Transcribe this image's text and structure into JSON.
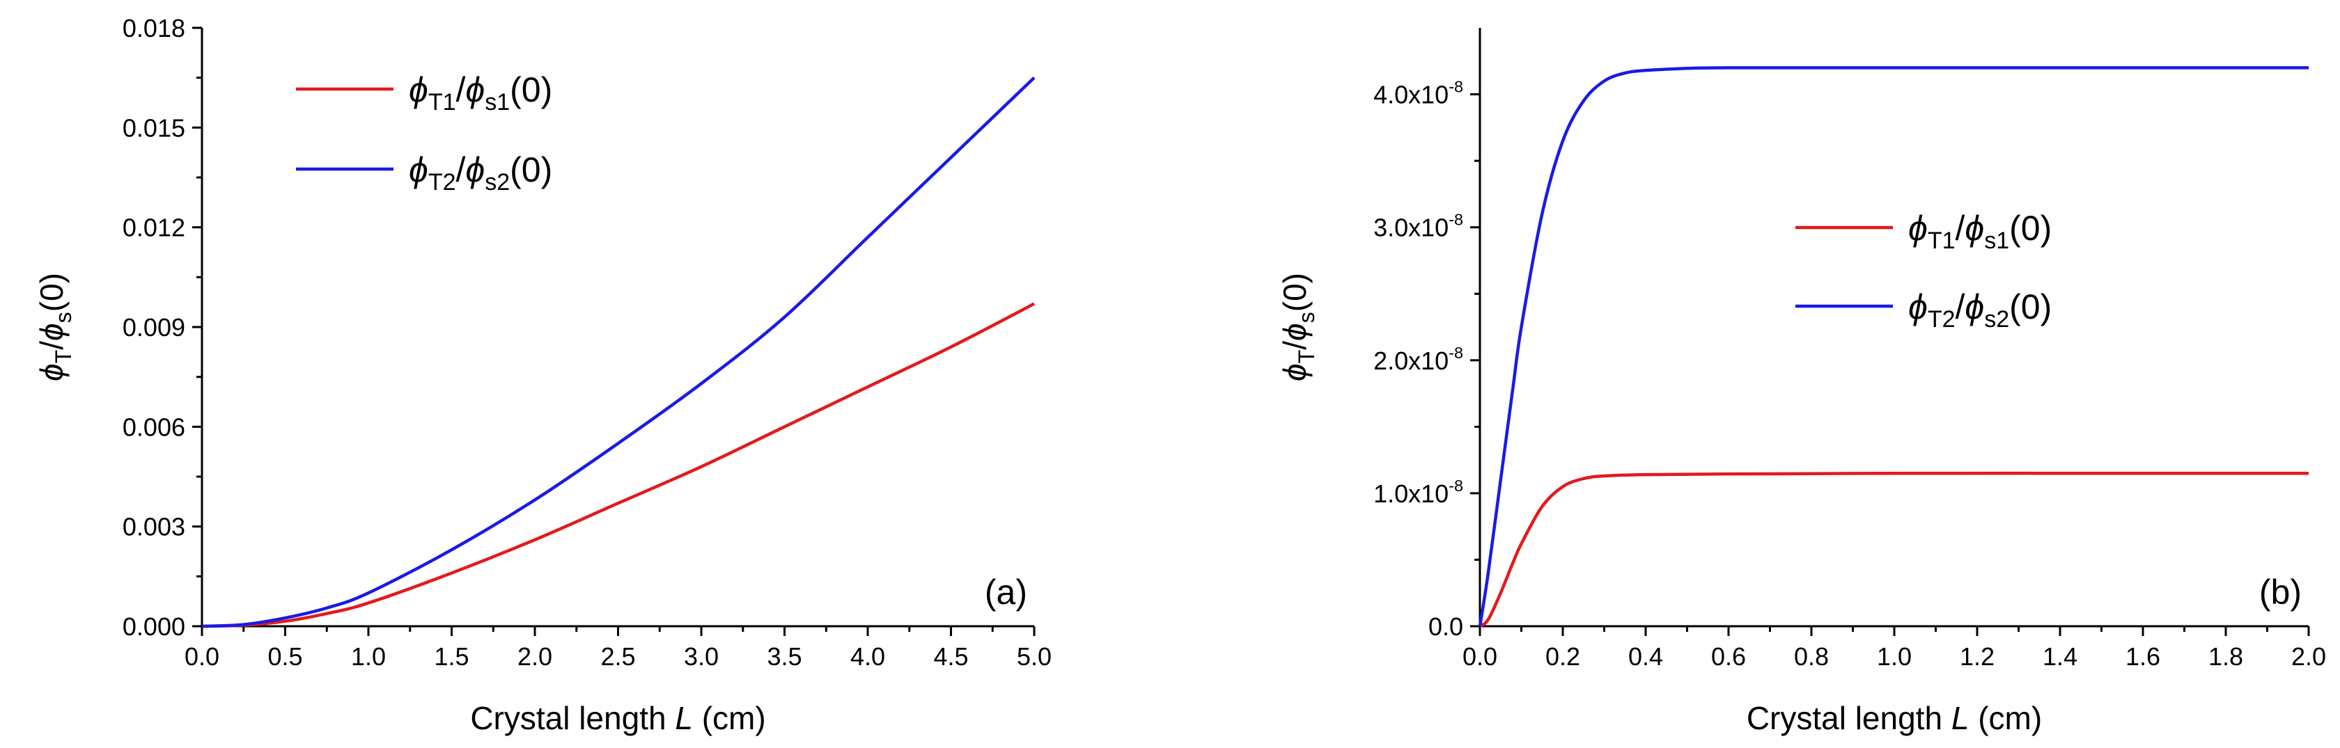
{
  "chart_data": [
    {
      "type": "line",
      "panel_label": "(a)",
      "xlabel": "Crystal length ",
      "xlabel_italic": "L",
      "xlabel_unit": " (cm)",
      "ylabel": "ϕT/ϕs(0)",
      "xlim": [
        0,
        5.0
      ],
      "ylim": [
        0,
        0.018
      ],
      "x_ticks": [
        0.0,
        0.5,
        1.0,
        1.5,
        2.0,
        2.5,
        3.0,
        3.5,
        4.0,
        4.5,
        5.0
      ],
      "x_tick_labels": [
        "0.0",
        "0.5",
        "1.0",
        "1.5",
        "2.0",
        "2.5",
        "3.0",
        "3.5",
        "4.0",
        "4.5",
        "5.0"
      ],
      "y_ticks": [
        0,
        0.003,
        0.006,
        0.009,
        0.012,
        0.015,
        0.018
      ],
      "y_tick_labels": [
        "0.000",
        "0.003",
        "0.006",
        "0.009",
        "0.012",
        "0.015",
        "0.018"
      ],
      "legend_position": "top-left",
      "series": [
        {
          "name": "ϕT1/ϕs1(0)",
          "color": "#e31a1c",
          "x": [
            0,
            0.25,
            0.5,
            0.75,
            1.0,
            1.5,
            2.0,
            2.5,
            3.0,
            3.5,
            4.0,
            4.5,
            5.0
          ],
          "y": [
            0,
            3e-05,
            0.00015,
            0.00038,
            0.0007,
            0.0016,
            0.0026,
            0.0037,
            0.0048,
            0.006,
            0.0072,
            0.0084,
            0.0097
          ]
        },
        {
          "name": "ϕT2/ϕs2(0)",
          "color": "#1a1ae6",
          "x": [
            0,
            0.25,
            0.5,
            0.75,
            1.0,
            1.5,
            2.0,
            2.5,
            3.0,
            3.5,
            4.0,
            4.5,
            5.0
          ],
          "y": [
            0,
            5e-05,
            0.00025,
            0.00055,
            0.001,
            0.0023,
            0.0038,
            0.0055,
            0.0073,
            0.0093,
            0.0117,
            0.0141,
            0.0165
          ]
        }
      ]
    },
    {
      "type": "line",
      "panel_label": "(b)",
      "xlabel": "Crystal length ",
      "xlabel_italic": "L",
      "xlabel_unit": " (cm)",
      "ylabel": "ϕT/ϕs(0)",
      "xlim": [
        0,
        2.0
      ],
      "ylim": [
        0,
        4.5e-08
      ],
      "x_ticks": [
        0.0,
        0.2,
        0.4,
        0.6,
        0.8,
        1.0,
        1.2,
        1.4,
        1.6,
        1.8,
        2.0
      ],
      "x_tick_labels": [
        "0.0",
        "0.2",
        "0.4",
        "0.6",
        "0.8",
        "1.0",
        "1.2",
        "1.4",
        "1.6",
        "1.8",
        "2.0"
      ],
      "y_ticks": [
        0,
        1e-08,
        2e-08,
        3e-08,
        4e-08
      ],
      "y_tick_labels": [
        "0.0",
        "1.0x10-8",
        "2.0x10-8",
        "3.0x10-8",
        "4.0x10-8"
      ],
      "legend_position": "center-right",
      "series": [
        {
          "name": "ϕT1/ϕs1(0)",
          "color": "#e31a1c",
          "x": [
            0,
            0.02,
            0.05,
            0.08,
            0.1,
            0.15,
            0.2,
            0.25,
            0.3,
            0.4,
            0.6,
            1.0,
            1.5,
            2.0
          ],
          "y": [
            0,
            5e-10,
            2.5e-09,
            4.8e-09,
            6.2e-09,
            9e-09,
            1.05e-08,
            1.11e-08,
            1.13e-08,
            1.14e-08,
            1.145e-08,
            1.15e-08,
            1.15e-08,
            1.15e-08
          ]
        },
        {
          "name": "ϕT2/ϕs2(0)",
          "color": "#1a1ae6",
          "x": [
            0,
            0.02,
            0.05,
            0.08,
            0.1,
            0.15,
            0.2,
            0.25,
            0.3,
            0.35,
            0.4,
            0.5,
            0.6,
            1.0,
            1.5,
            2.0
          ],
          "y": [
            0,
            4e-09,
            1.1e-08,
            1.8e-08,
            2.25e-08,
            3.1e-08,
            3.65e-08,
            3.95e-08,
            4.1e-08,
            4.16e-08,
            4.18e-08,
            4.195e-08,
            4.2e-08,
            4.2e-08,
            4.2e-08,
            4.2e-08
          ]
        }
      ]
    }
  ]
}
